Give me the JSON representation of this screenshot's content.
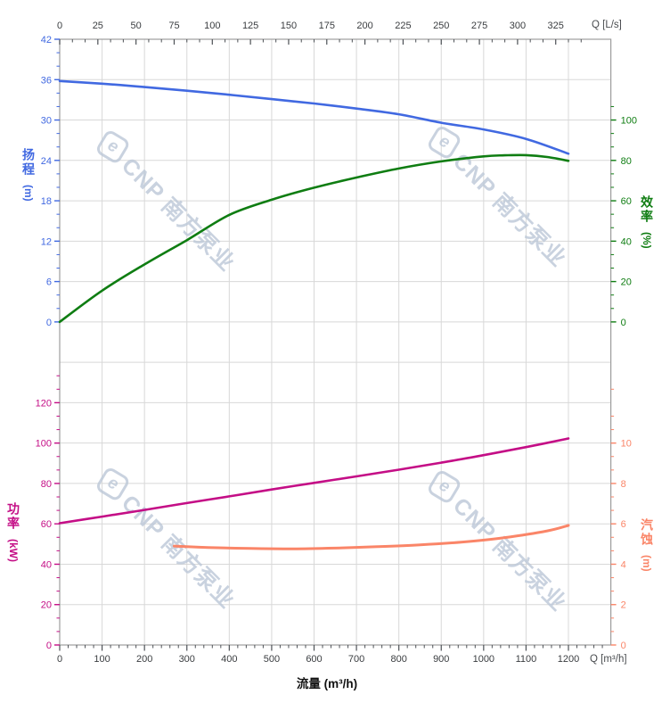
{
  "page": {
    "background": "#ffffff"
  },
  "watermark": {
    "logo_glyph": "e",
    "text": "CNP 南方泵业",
    "color": "#bcc8d8"
  },
  "labels": {
    "flow_axis_title": "流量 (m³/h)",
    "top_unit": "Q [L/s]",
    "bottom_unit": "Q [m³/h]",
    "head_title": "扬程",
    "head_unit": "(m)",
    "eff_title": "效率",
    "eff_unit": "(%)",
    "power_title": "功率",
    "power_unit": "(kW)",
    "npsh_title": "汽蚀",
    "npsh_unit": "(m)"
  },
  "colors": {
    "head": "#4169e1",
    "efficiency": "#0f7d12",
    "power": "#c40e86",
    "npsh": "#fa8568",
    "grid": "#d8d8d8",
    "border": "#9e9e9e",
    "x_tick": "#4d5156",
    "x_text": "#3a3d40"
  },
  "chart_data": {
    "type": "line",
    "title": "",
    "xlabel": "流量 (m³/h)",
    "x_bottom": {
      "unit": "Q [m³/h]",
      "range": [
        0,
        1300
      ],
      "major_ticks": [
        0,
        100,
        200,
        300,
        400,
        500,
        600,
        700,
        800,
        900,
        1000,
        1100,
        1200
      ],
      "minor_step": 20
    },
    "x_top": {
      "unit": "Q [L/s]",
      "major_ticks": [
        0,
        25,
        50,
        75,
        100,
        125,
        150,
        175,
        200,
        225,
        250,
        275,
        300,
        325
      ],
      "minor_step": 8.3333,
      "m3h_per_lps": 3.6
    },
    "y_axes": {
      "head": {
        "title": "扬程 (m)",
        "side": "left",
        "panel": "top",
        "range": [
          0,
          42
        ],
        "major_ticks": [
          0,
          6,
          12,
          18,
          24,
          30,
          36,
          42
        ],
        "minor_step": 2
      },
      "efficiency": {
        "title": "效率 (%)",
        "side": "right",
        "panel": "top",
        "range": [
          0,
          100
        ],
        "major_ticks": [
          0,
          20,
          40,
          60,
          80,
          100
        ],
        "minor_step": 6.6667
      },
      "power": {
        "title": "功率 (kW)",
        "side": "left",
        "panel": "bottom",
        "range": [
          0,
          120
        ],
        "major_ticks": [
          0,
          20,
          40,
          60,
          80,
          100,
          120
        ],
        "minor_step": 6.6667
      },
      "npsh": {
        "title": "汽蚀 (m)",
        "side": "right",
        "panel": "bottom",
        "range": [
          0,
          10
        ],
        "major_ticks": [
          0,
          2,
          4,
          6,
          8,
          10
        ],
        "minor_step": 0.6667
      }
    },
    "grid": true,
    "legend": "none",
    "series": [
      {
        "name": "head",
        "axis": "head",
        "color": "#4169e1",
        "width": 2.6,
        "points": [
          [
            0,
            35.8
          ],
          [
            100,
            35.4
          ],
          [
            200,
            34.9
          ],
          [
            300,
            34.35
          ],
          [
            400,
            33.75
          ],
          [
            500,
            33.1
          ],
          [
            600,
            32.45
          ],
          [
            700,
            31.7
          ],
          [
            800,
            30.85
          ],
          [
            900,
            29.6
          ],
          [
            1000,
            28.6
          ],
          [
            1100,
            27.2
          ],
          [
            1200,
            25.0
          ]
        ]
      },
      {
        "name": "efficiency",
        "axis": "efficiency",
        "color": "#0f7d12",
        "width": 2.6,
        "points": [
          [
            0,
            0
          ],
          [
            100,
            15.5
          ],
          [
            200,
            28.5
          ],
          [
            300,
            40.5
          ],
          [
            400,
            53
          ],
          [
            500,
            60.5
          ],
          [
            600,
            66.5
          ],
          [
            700,
            71.5
          ],
          [
            800,
            76
          ],
          [
            900,
            79.5
          ],
          [
            1000,
            82
          ],
          [
            1050,
            82.5
          ],
          [
            1100,
            82.6
          ],
          [
            1150,
            81.7
          ],
          [
            1200,
            79.8
          ]
        ]
      },
      {
        "name": "power",
        "axis": "power",
        "color": "#c40e86",
        "width": 2.6,
        "points": [
          [
            0,
            60.3
          ],
          [
            100,
            63.6
          ],
          [
            200,
            66.9
          ],
          [
            300,
            70.3
          ],
          [
            400,
            73.6
          ],
          [
            500,
            77
          ],
          [
            600,
            80.3
          ],
          [
            700,
            83.5
          ],
          [
            800,
            86.8
          ],
          [
            900,
            90.3
          ],
          [
            1000,
            94
          ],
          [
            1100,
            98
          ],
          [
            1200,
            102.3
          ]
        ]
      },
      {
        "name": "npsh",
        "axis": "npsh",
        "color": "#fa8568",
        "width": 3,
        "points": [
          [
            270,
            4.9
          ],
          [
            350,
            4.83
          ],
          [
            450,
            4.78
          ],
          [
            550,
            4.76
          ],
          [
            650,
            4.8
          ],
          [
            750,
            4.87
          ],
          [
            850,
            4.96
          ],
          [
            950,
            5.1
          ],
          [
            1050,
            5.32
          ],
          [
            1150,
            5.65
          ],
          [
            1200,
            5.92
          ]
        ]
      }
    ]
  }
}
